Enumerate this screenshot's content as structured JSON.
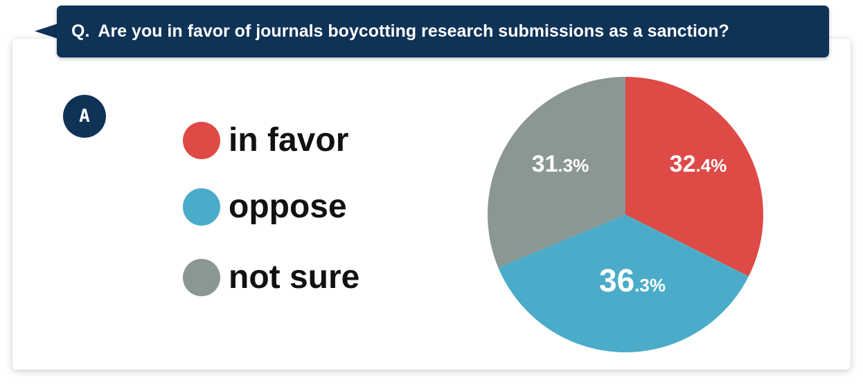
{
  "question": {
    "prefix": "Q.",
    "text": "Are you in favor of journals boycotting research submissions as a sanction?"
  },
  "badge": "A",
  "chart_data": {
    "type": "pie",
    "title": "",
    "legend_placement": "left",
    "series": [
      {
        "name": "in favor",
        "value": 32.4,
        "int_label": "32",
        "dec_label": ".4%",
        "color": "#de4a45"
      },
      {
        "name": "oppose",
        "value": 36.3,
        "int_label": "36",
        "dec_label": ".3%",
        "color": "#4aacc8"
      },
      {
        "name": "not sure",
        "value": 31.3,
        "int_label": "31",
        "dec_label": ".3%",
        "color": "#8b9794"
      }
    ]
  },
  "colors": {
    "header_bg": "#0f3257",
    "text": "#111111",
    "label_text": "#ffffff"
  }
}
